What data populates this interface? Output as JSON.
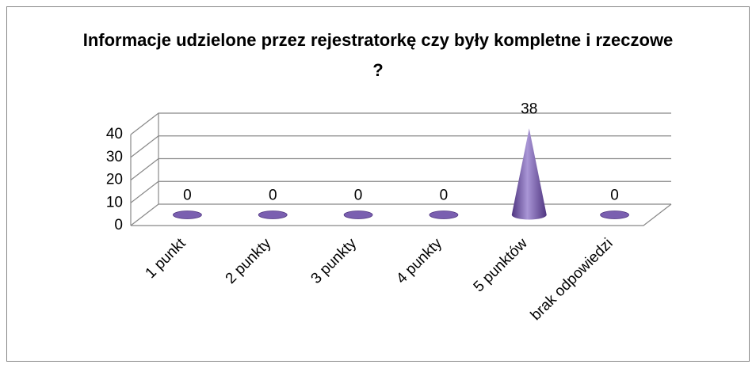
{
  "chart_data": {
    "type": "cone",
    "title": "Informacje udzielone przez rejestratorkę czy były kompletne i rzeczowe ?",
    "categories": [
      "1 punkt",
      "2 punkty",
      "3 punkty",
      "4 punkty",
      "5 punktów",
      "brak odpowiedzi"
    ],
    "values": [
      0,
      0,
      0,
      0,
      38,
      0
    ],
    "color": "#7a5fb0",
    "ylim": [
      0,
      40
    ],
    "yticks": [
      0,
      10,
      20,
      30,
      40
    ],
    "grid": true
  }
}
